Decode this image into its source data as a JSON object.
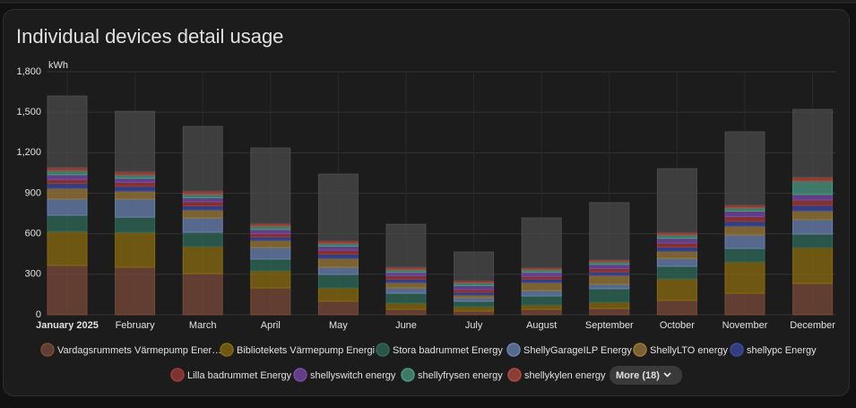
{
  "chart_data": {
    "type": "bar",
    "stacked": true,
    "title": "Individual devices detail usage",
    "y_label": "kWh",
    "categories": [
      "January 2025",
      "February",
      "March",
      "April",
      "May",
      "June",
      "July",
      "August",
      "September",
      "October",
      "November",
      "December"
    ],
    "ylim": [
      0,
      1800
    ],
    "yticks": [
      0,
      300,
      600,
      900,
      {
        "value": 1200,
        "label": "1,200"
      },
      {
        "value": 1500,
        "label": "1,500"
      },
      {
        "value": 1800,
        "label": "1,800"
      }
    ],
    "grid": true,
    "series": [
      {
        "name": "Vardagsrummets Värmepump Ener…",
        "color": "#7a4a3a",
        "values": [
          365,
          352,
          305,
          199,
          100,
          40,
          27,
          40,
          46,
          106,
          159,
          232
        ]
      },
      {
        "name": "Bibliotekets Värmepump Energi",
        "color": "#8a6a10",
        "values": [
          252,
          258,
          200,
          126,
          99,
          46,
          33,
          33,
          47,
          160,
          233,
          266
        ]
      },
      {
        "name": "Stora badrummet Energy",
        "color": "#2f6a5a",
        "values": [
          120,
          113,
          106,
          87,
          100,
          73,
          40,
          66,
          100,
          93,
          99,
          100
        ]
      },
      {
        "name": "ShellyGarageILP Energy",
        "color": "#6a82b0",
        "values": [
          120,
          134,
          106,
          86,
          53,
          40,
          26,
          40,
          33,
          59,
          100,
          106
        ]
      },
      {
        "name": "ShellyLTO energy",
        "color": "#9a7a3a",
        "values": [
          80,
          59,
          60,
          53,
          66,
          40,
          20,
          60,
          66,
          53,
          66,
          66
        ]
      },
      {
        "name": "shellypc Energy",
        "color": "#3a4aa0",
        "values": [
          35,
          35,
          30,
          25,
          30,
          25,
          20,
          25,
          25,
          30,
          35,
          40
        ]
      },
      {
        "name": "Lilla badrummet Energy",
        "color": "#a03a3a",
        "values": [
          30,
          30,
          30,
          25,
          30,
          25,
          20,
          20,
          25,
          30,
          35,
          40
        ]
      },
      {
        "name": "shellyswitch energy",
        "color": "#7a4aaa",
        "values": [
          35,
          30,
          30,
          30,
          30,
          25,
          30,
          30,
          30,
          35,
          40,
          40
        ]
      },
      {
        "name": "shellyfrysen energy",
        "color": "#4a9a80",
        "values": [
          30,
          25,
          25,
          25,
          20,
          20,
          20,
          20,
          20,
          25,
          25,
          100
        ]
      },
      {
        "name": "shellykylen energy",
        "color": "#b04a40",
        "values": [
          25,
          25,
          25,
          20,
          20,
          20,
          15,
          15,
          15,
          20,
          20,
          30
        ]
      },
      {
        "color": "#4a4a4a",
        "values": [
          528,
          446,
          478,
          559,
          494,
          316,
          214,
          368,
          423,
          471,
          543,
          501
        ]
      }
    ],
    "more_button": "More (18)"
  }
}
